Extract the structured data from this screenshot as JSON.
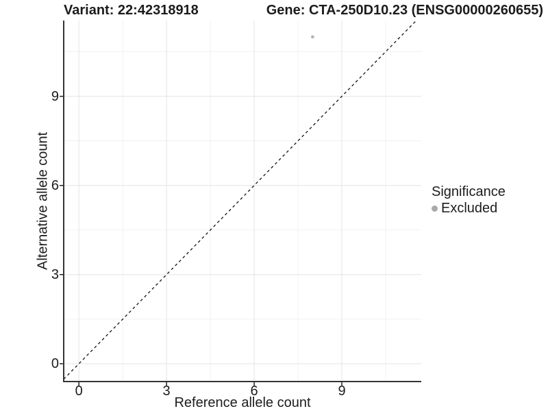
{
  "chart_data": {
    "type": "scatter",
    "title_left": "Variant: 22:42318918",
    "title_right": "Gene: CTA-250D10.23 (ENSG00000260655)",
    "xlabel": "Reference allele count",
    "ylabel": "Alternative allele count",
    "xlim": [
      -0.52,
      11.72
    ],
    "ylim": [
      -0.6,
      11.55
    ],
    "x_ticks": [
      0,
      3,
      6,
      9
    ],
    "y_ticks": [
      0,
      3,
      6,
      9
    ],
    "x_minor_ticks": [
      1.5,
      4.5,
      7.5,
      10.5
    ],
    "y_minor_ticks": [
      1.5,
      4.5,
      7.5,
      10.5
    ],
    "grid": true,
    "series": [
      {
        "name": "Excluded",
        "color": "#b5b5b5",
        "points": [
          {
            "x": 8,
            "y": 11
          }
        ],
        "point_radius": 2.4
      }
    ],
    "reference_line": {
      "slope": 1,
      "intercept": 0,
      "style": "dashed",
      "color": "#111111"
    },
    "legend": {
      "title": "Significance",
      "position": "right",
      "entries": [
        {
          "label": "Excluded",
          "color": "#a9a9a9"
        }
      ]
    }
  },
  "colors": {
    "background": "#ffffff",
    "axis_line": "#333333",
    "tick_mark": "#222222",
    "grid_major": "#e4e4e4",
    "grid_minor": "#f1f1f1",
    "text": "#1c1c1c"
  }
}
